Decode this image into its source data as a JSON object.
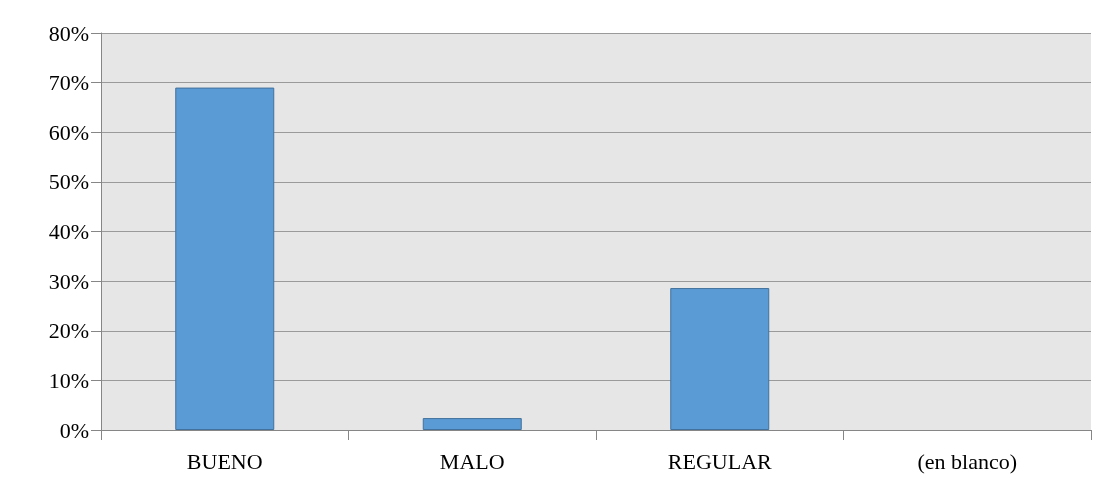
{
  "chart_data": {
    "type": "bar",
    "categories": [
      "BUENO",
      "MALO",
      "REGULAR",
      "(en blanco)"
    ],
    "values": [
      69,
      2.4,
      28.6,
      0
    ],
    "color": "#5b9bd5",
    "ylim": [
      0,
      80
    ],
    "yticks": [
      {
        "value": 0,
        "label": "0%"
      },
      {
        "value": 10,
        "label": "10%"
      },
      {
        "value": 20,
        "label": "20%"
      },
      {
        "value": 30,
        "label": "30%"
      },
      {
        "value": 40,
        "label": "40%"
      },
      {
        "value": 50,
        "label": "50%"
      },
      {
        "value": 60,
        "label": "60%"
      },
      {
        "value": 70,
        "label": "70%"
      },
      {
        "value": 80,
        "label": "80%"
      }
    ],
    "grid": "y"
  }
}
